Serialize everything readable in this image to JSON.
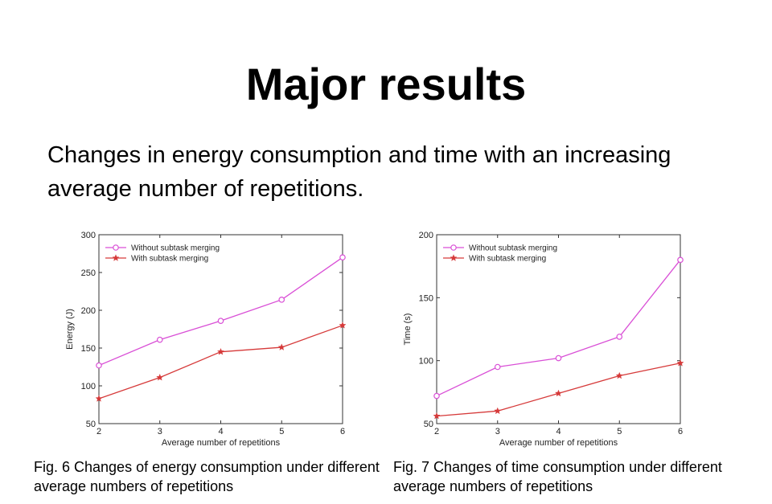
{
  "slide": {
    "title": "Major results",
    "subtitle": "Changes in energy consumption and time with an increasing average number of repetitions."
  },
  "captions": [
    "Fig. 6  Changes of energy consumption under different average numbers of repetitions",
    "Fig. 7  Changes of time consumption under different average numbers of repetitions"
  ],
  "colors": {
    "without": "#d94fd6",
    "with": "#d63a3a",
    "axis": "#333333",
    "grid": "#e0e0e0"
  },
  "chart_data": [
    {
      "type": "line",
      "x": [
        2,
        3,
        4,
        5,
        6
      ],
      "xlabel": "Average number of repetitions",
      "ylabel": "Energy (J)",
      "xlim": [
        2,
        6
      ],
      "ylim": [
        50,
        300
      ],
      "xticks": [
        2,
        3,
        4,
        5,
        6
      ],
      "yticks": [
        50,
        100,
        150,
        200,
        250,
        300
      ],
      "legend": "top-left",
      "grid": false,
      "series": [
        {
          "name": "Without subtask merging",
          "marker": "circle",
          "values": [
            127,
            161,
            186,
            214,
            270
          ]
        },
        {
          "name": "With subtask merging",
          "marker": "star",
          "values": [
            83,
            111,
            145,
            151,
            180
          ]
        }
      ]
    },
    {
      "type": "line",
      "x": [
        2,
        3,
        4,
        5,
        6
      ],
      "xlabel": "Average number of repetitions",
      "ylabel": "Time (s)",
      "xlim": [
        2,
        6
      ],
      "ylim": [
        50,
        200
      ],
      "xticks": [
        2,
        3,
        4,
        5,
        6
      ],
      "yticks": [
        50,
        100,
        150,
        200
      ],
      "legend": "top-left",
      "grid": false,
      "series": [
        {
          "name": "Without subtask merging",
          "marker": "circle",
          "values": [
            72,
            95,
            102,
            119,
            180
          ]
        },
        {
          "name": "With subtask merging",
          "marker": "star",
          "values": [
            56,
            60,
            74,
            88,
            98
          ]
        }
      ]
    }
  ]
}
